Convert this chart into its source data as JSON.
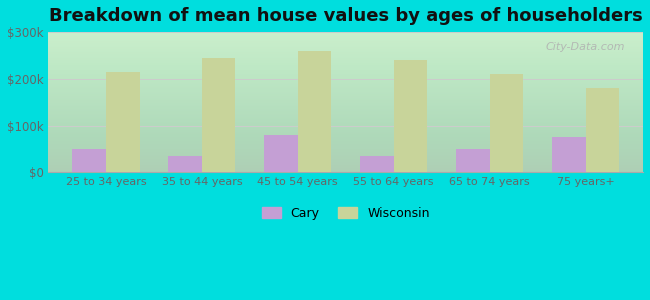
{
  "title": "Breakdown of mean house values by ages of householders",
  "categories": [
    "25 to 34 years",
    "35 to 44 years",
    "45 to 54 years",
    "55 to 64 years",
    "65 to 74 years",
    "75 years+"
  ],
  "cary_values": [
    50000,
    35000,
    80000,
    35000,
    50000,
    75000
  ],
  "wisconsin_values": [
    215000,
    245000,
    260000,
    240000,
    210000,
    180000
  ],
  "cary_color": "#c49fd4",
  "wisconsin_color": "#c8d49a",
  "background_top": "#e8fde8",
  "background_bottom": "#f5fff5",
  "outer_background": "#00dede",
  "ylim": [
    0,
    300000
  ],
  "yticks": [
    0,
    100000,
    200000,
    300000
  ],
  "ytick_labels": [
    "$0",
    "$100k",
    "$200k",
    "$300k"
  ],
  "title_fontsize": 13,
  "legend_labels": [
    "Cary",
    "Wisconsin"
  ],
  "bar_width": 0.35,
  "grid_color": "#cccccc"
}
